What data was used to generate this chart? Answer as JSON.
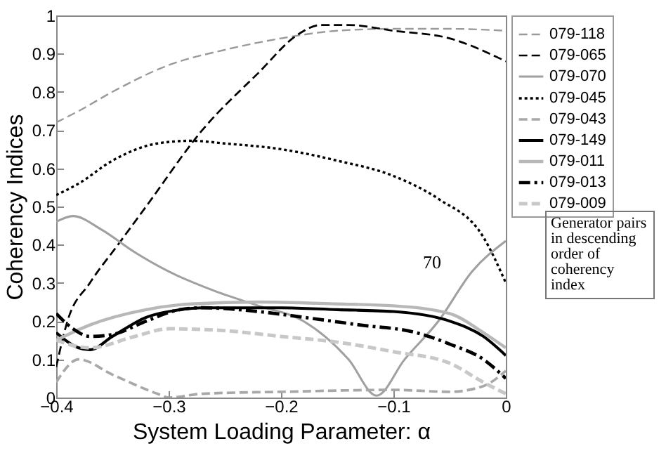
{
  "chart_data": {
    "type": "line",
    "xlabel": "System Loading Parameter: α",
    "ylabel": "Coherency Indices",
    "xlim": [
      -0.4,
      0
    ],
    "ylim": [
      0,
      1
    ],
    "xticks": [
      -0.4,
      -0.3,
      -0.2,
      -0.1,
      0
    ],
    "yticks": [
      0,
      0.1,
      0.2,
      0.3,
      0.4,
      0.5,
      0.6,
      0.7,
      0.8,
      0.9,
      1
    ],
    "grid": false,
    "legend": "top right",
    "marker": "none",
    "annotations": [
      "Generator pairs in descending order of coherency index",
      {
        "text": "70",
        "x": -0.03,
        "y": 0.33
      }
    ],
    "series": [
      {
        "name": "079-118",
        "color": "#9a9a9a",
        "line_style": "dashed",
        "x": [
          -0.4,
          -0.38,
          -0.35,
          -0.3,
          -0.25,
          -0.2,
          -0.15,
          -0.1,
          -0.05,
          0
        ],
        "values": [
          0.72,
          0.75,
          0.8,
          0.87,
          0.91,
          0.94,
          0.96,
          0.965,
          0.965,
          0.96
        ]
      },
      {
        "name": "079-065",
        "color": "#000000",
        "line_style": "dashed",
        "x": [
          -0.4,
          -0.39,
          -0.37,
          -0.345,
          -0.32,
          -0.27,
          -0.22,
          -0.185,
          -0.165,
          -0.14,
          -0.1,
          -0.05,
          0
        ],
        "values": [
          0.08,
          0.2,
          0.3,
          0.4,
          0.5,
          0.7,
          0.85,
          0.95,
          0.975,
          0.975,
          0.96,
          0.94,
          0.88
        ]
      },
      {
        "name": "079-070",
        "color": "#a0a0a0",
        "line_style": "solid",
        "x": [
          -0.4,
          -0.385,
          -0.36,
          -0.33,
          -0.3,
          -0.26,
          -0.22,
          -0.18,
          -0.14,
          -0.115,
          -0.09,
          -0.06,
          -0.03,
          0
        ],
        "values": [
          0.46,
          0.475,
          0.44,
          0.38,
          0.33,
          0.28,
          0.24,
          0.2,
          0.1,
          0.005,
          0.1,
          0.2,
          0.33,
          0.41
        ]
      },
      {
        "name": "079-045",
        "color": "#000000",
        "line_style": "dotted",
        "x": [
          -0.4,
          -0.38,
          -0.35,
          -0.31,
          -0.28,
          -0.25,
          -0.2,
          -0.15,
          -0.1,
          -0.06,
          -0.02,
          0
        ],
        "values": [
          0.53,
          0.56,
          0.62,
          0.665,
          0.672,
          0.665,
          0.65,
          0.62,
          0.58,
          0.52,
          0.42,
          0.3
        ]
      },
      {
        "name": "079-043",
        "color": "#a8a8a8",
        "line_style": "dashed",
        "x": [
          -0.4,
          -0.38,
          -0.35,
          -0.31,
          -0.3,
          -0.27,
          -0.2,
          -0.1,
          -0.05,
          -0.02,
          0
        ],
        "values": [
          0.04,
          0.1,
          0.06,
          0.01,
          0,
          0.01,
          0.015,
          0.02,
          0.015,
          0.03,
          0.07
        ]
      },
      {
        "name": "079-149",
        "color": "#000000",
        "line_style": "solid",
        "x": [
          -0.4,
          -0.38,
          -0.37,
          -0.35,
          -0.32,
          -0.29,
          -0.27,
          -0.2,
          -0.15,
          -0.1,
          -0.05,
          -0.02,
          0
        ],
        "values": [
          0.17,
          0.13,
          0.125,
          0.16,
          0.21,
          0.23,
          0.235,
          0.235,
          0.23,
          0.225,
          0.2,
          0.16,
          0.11
        ]
      },
      {
        "name": "079-011",
        "color": "#b8b8b8",
        "line_style": "solid",
        "x": [
          -0.4,
          -0.37,
          -0.32,
          -0.28,
          -0.22,
          -0.15,
          -0.1,
          -0.05,
          -0.02,
          0
        ],
        "values": [
          0.15,
          0.19,
          0.23,
          0.245,
          0.25,
          0.245,
          0.24,
          0.22,
          0.17,
          0.13
        ]
      },
      {
        "name": "079-013",
        "color": "#000000",
        "line_style": "dashdot",
        "x": [
          -0.4,
          -0.385,
          -0.37,
          -0.35,
          -0.32,
          -0.29,
          -0.27,
          -0.22,
          -0.18,
          -0.13,
          -0.08,
          -0.05,
          -0.02,
          0
        ],
        "values": [
          0.22,
          0.18,
          0.16,
          0.165,
          0.2,
          0.23,
          0.235,
          0.225,
          0.21,
          0.19,
          0.17,
          0.14,
          0.1,
          0.05
        ]
      },
      {
        "name": "079-009",
        "color": "#c8c8c8",
        "line_style": "dashed",
        "x": [
          -0.4,
          -0.37,
          -0.33,
          -0.3,
          -0.25,
          -0.2,
          -0.15,
          -0.1,
          -0.05,
          -0.02,
          0
        ],
        "values": [
          0.15,
          0.13,
          0.16,
          0.18,
          0.175,
          0.16,
          0.145,
          0.12,
          0.09,
          0.04,
          0.01
        ]
      }
    ]
  }
}
